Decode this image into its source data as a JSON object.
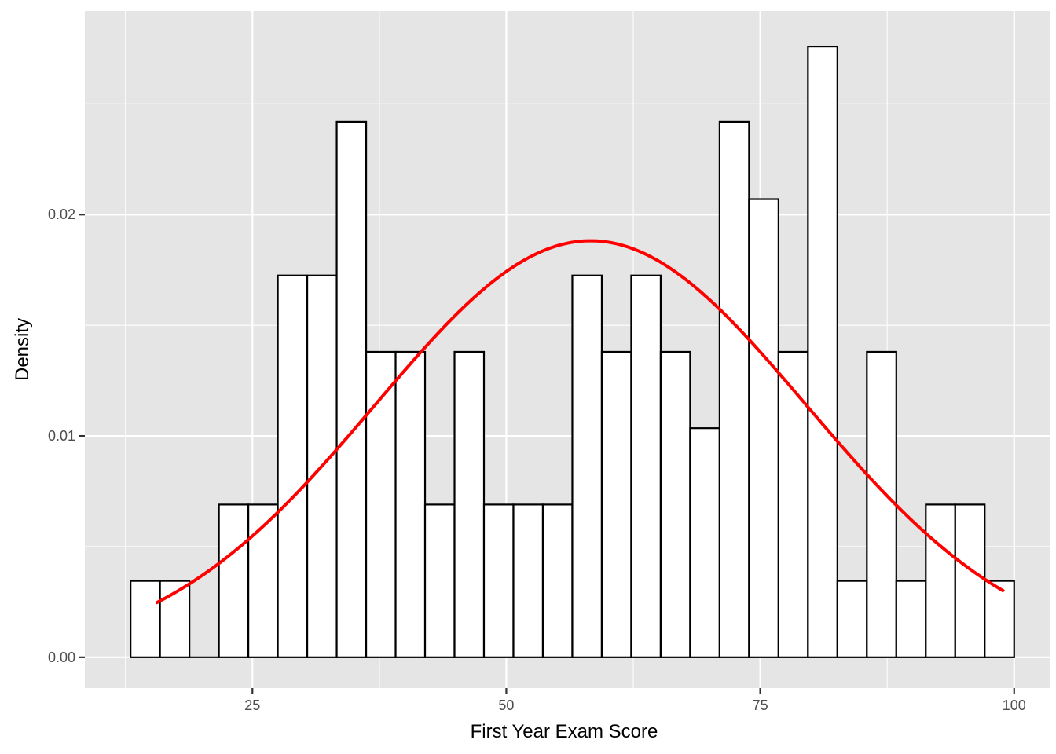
{
  "chart_data": {
    "type": "bar",
    "subtype": "histogram with normal density curve",
    "xlabel": "First Year Exam Score",
    "ylabel": "Density",
    "xlim": [
      8.5,
      103.5
    ],
    "ylim": [
      -0.00139,
      0.0292
    ],
    "x_ticks": [
      25,
      50,
      75,
      100
    ],
    "x_tick_labels": [
      "25",
      "50",
      "75",
      "100"
    ],
    "y_ticks": [
      0.0,
      0.01,
      0.02
    ],
    "y_tick_labels": [
      "0.00",
      "0.01",
      "0.02"
    ],
    "bin_width": 2.9,
    "bins": [
      {
        "x0": 13.0,
        "x1": 15.9,
        "density": 0.00345
      },
      {
        "x0": 15.9,
        "x1": 18.8,
        "density": 0.00345
      },
      {
        "x0": 18.8,
        "x1": 21.7,
        "density": 0.0
      },
      {
        "x0": 21.7,
        "x1": 24.6,
        "density": 0.0069
      },
      {
        "x0": 24.6,
        "x1": 27.5,
        "density": 0.0069
      },
      {
        "x0": 27.5,
        "x1": 30.4,
        "density": 0.01725
      },
      {
        "x0": 30.4,
        "x1": 33.3,
        "density": 0.01725
      },
      {
        "x0": 33.3,
        "x1": 36.2,
        "density": 0.0242
      },
      {
        "x0": 36.2,
        "x1": 39.1,
        "density": 0.0138
      },
      {
        "x0": 39.1,
        "x1": 42.0,
        "density": 0.0138
      },
      {
        "x0": 42.0,
        "x1": 44.9,
        "density": 0.0069
      },
      {
        "x0": 44.9,
        "x1": 47.8,
        "density": 0.0138
      },
      {
        "x0": 47.8,
        "x1": 50.7,
        "density": 0.0069
      },
      {
        "x0": 50.7,
        "x1": 53.6,
        "density": 0.0069
      },
      {
        "x0": 53.6,
        "x1": 56.5,
        "density": 0.0069
      },
      {
        "x0": 56.5,
        "x1": 59.4,
        "density": 0.01725
      },
      {
        "x0": 59.4,
        "x1": 62.3,
        "density": 0.0138
      },
      {
        "x0": 62.3,
        "x1": 65.2,
        "density": 0.01725
      },
      {
        "x0": 65.2,
        "x1": 68.1,
        "density": 0.0138
      },
      {
        "x0": 68.1,
        "x1": 71.0,
        "density": 0.01035
      },
      {
        "x0": 71.0,
        "x1": 73.9,
        "density": 0.0242
      },
      {
        "x0": 73.9,
        "x1": 76.8,
        "density": 0.0207
      },
      {
        "x0": 76.8,
        "x1": 79.7,
        "density": 0.0138
      },
      {
        "x0": 79.7,
        "x1": 82.6,
        "density": 0.0276
      },
      {
        "x0": 82.6,
        "x1": 85.5,
        "density": 0.00345
      },
      {
        "x0": 85.5,
        "x1": 88.4,
        "density": 0.0138
      },
      {
        "x0": 88.4,
        "x1": 91.3,
        "density": 0.00345
      },
      {
        "x0": 91.3,
        "x1": 94.2,
        "density": 0.0069
      },
      {
        "x0": 94.2,
        "x1": 97.1,
        "density": 0.0069
      },
      {
        "x0": 97.1,
        "x1": 100.0,
        "density": 0.00345
      }
    ],
    "density_curve": {
      "distribution": "normal",
      "mean": 58.3,
      "sd": 21.2,
      "x_range": [
        15.5,
        99.0
      ],
      "color": "#ff0000"
    },
    "bar_fill": "#ffffff",
    "bar_stroke": "#000000",
    "panel_background": "#e5e5e5",
    "grid": true,
    "grid_color": "#ffffff",
    "legend": "none"
  }
}
